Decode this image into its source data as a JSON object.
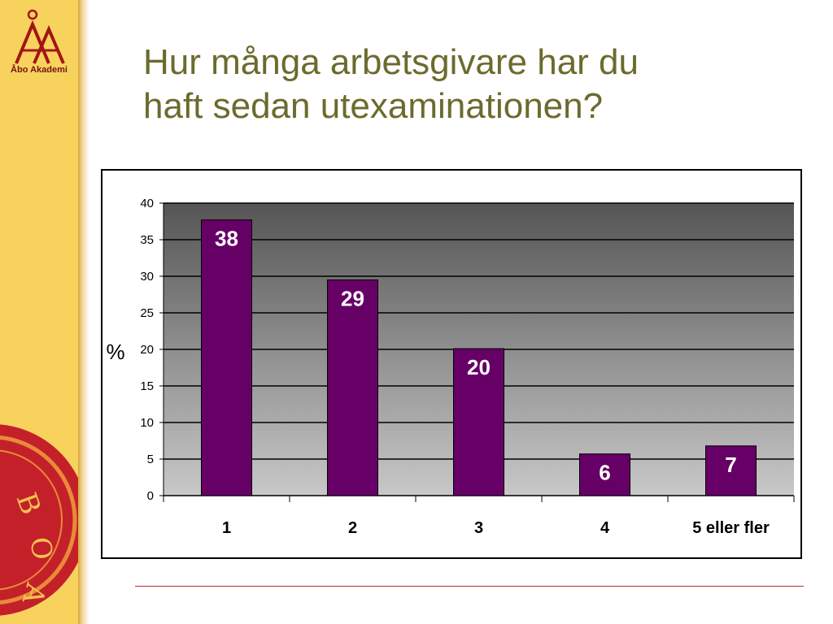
{
  "branding": {
    "logo_name": "Åbo Akademi",
    "logo_icon": "abo-akademi-crown-logo",
    "seal_icon": "university-seal",
    "seal_text": "BOA"
  },
  "slide": {
    "title_line1": "Hur många arbetsgivare har du",
    "title_line2": "haft sedan utexaminationen?"
  },
  "colors": {
    "sidebar": "#f7d35e",
    "title": "#6b6b2e",
    "bar": "#660066",
    "plot_top": "#555555",
    "plot_bottom": "#c8c8c8",
    "rule": "#c0282a"
  },
  "chart_data": {
    "type": "bar",
    "categories": [
      "1",
      "2",
      "3",
      "4",
      "5 eller fler"
    ],
    "values": [
      37.7,
      29.5,
      20.1,
      5.7,
      6.8
    ],
    "data_labels": [
      "38",
      "29",
      "20",
      "6",
      "7"
    ],
    "ylabel": "%",
    "xlabel": "",
    "ylim": [
      0,
      40
    ],
    "yticks": [
      0,
      5,
      10,
      15,
      20,
      25,
      30,
      35,
      40
    ],
    "grid": true,
    "legend": "none"
  }
}
